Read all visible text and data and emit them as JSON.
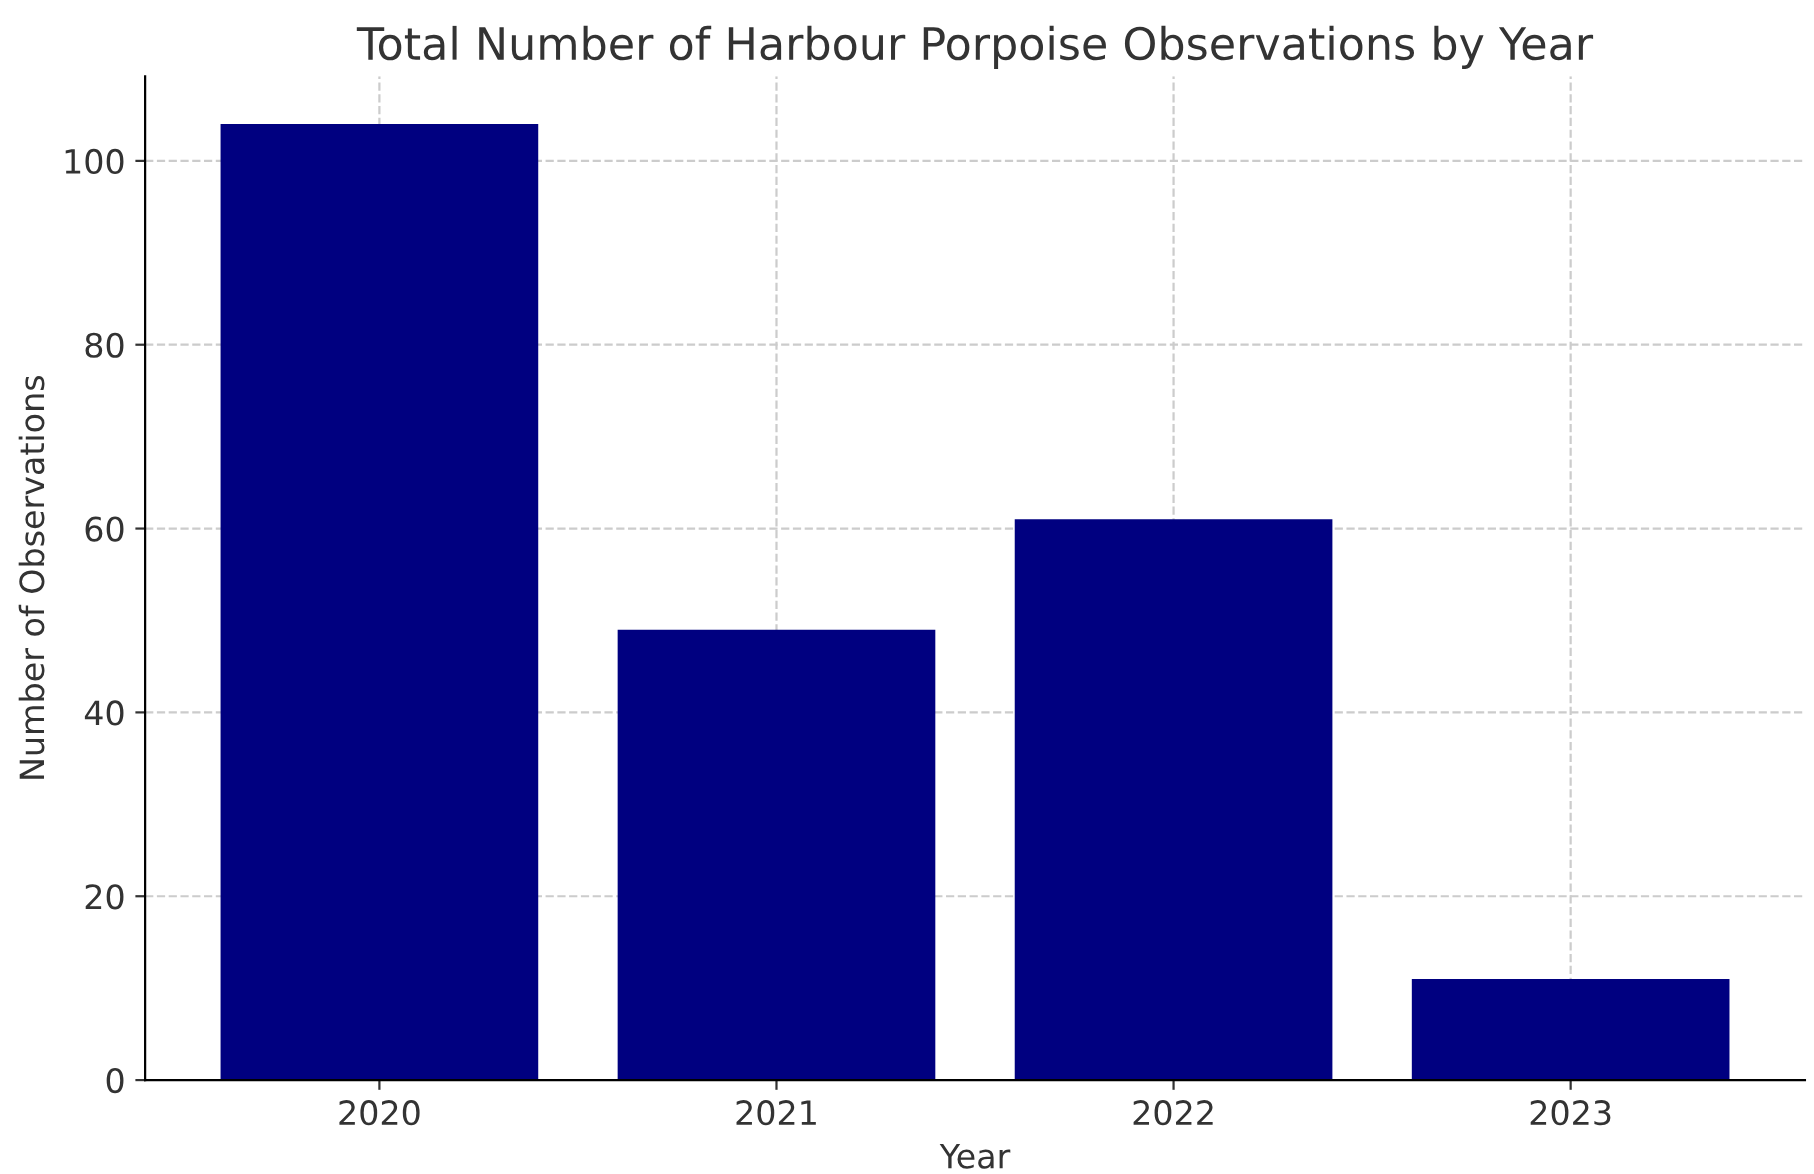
{
  "chart_data": {
    "type": "bar",
    "title": "Total Number of Harbour Porpoise Observations by Year",
    "xlabel": "Year",
    "ylabel": "Number of Observations",
    "categories": [
      "2020",
      "2021",
      "2022",
      "2023"
    ],
    "values": [
      104,
      49,
      61,
      11
    ],
    "color": "#000080",
    "ylim": [
      0,
      109.2
    ],
    "yticks": [
      0,
      20,
      40,
      60,
      80,
      100
    ],
    "grid": true
  }
}
